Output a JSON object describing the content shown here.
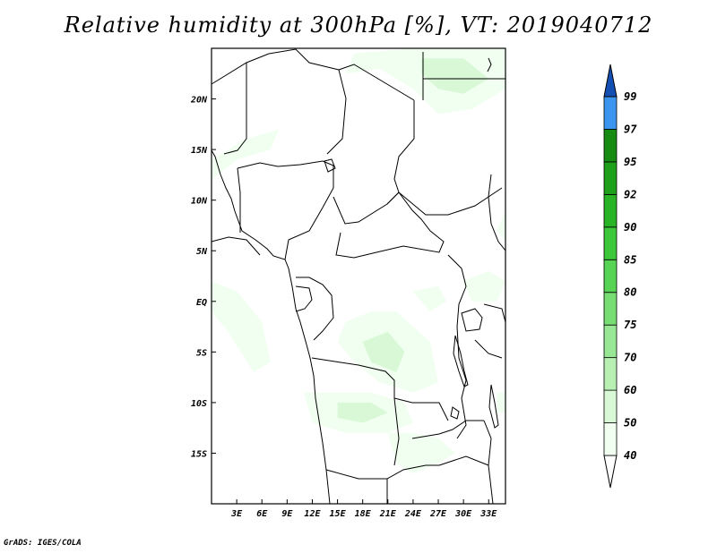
{
  "title": "Relative humidity at 300hPa [%], VT: 2019040712",
  "footer": "GrADS: IGES/COLA",
  "map": {
    "lon_range": [
      0,
      35
    ],
    "lat_range": [
      -20,
      25
    ],
    "lon_ticks": [
      {
        "value": 3,
        "label": "3E"
      },
      {
        "value": 6,
        "label": "6E"
      },
      {
        "value": 9,
        "label": "9E"
      },
      {
        "value": 12,
        "label": "12E"
      },
      {
        "value": 15,
        "label": "15E"
      },
      {
        "value": 18,
        "label": "18E"
      },
      {
        "value": 21,
        "label": "21E"
      },
      {
        "value": 24,
        "label": "24E"
      },
      {
        "value": 27,
        "label": "27E"
      },
      {
        "value": 30,
        "label": "30E"
      },
      {
        "value": 33,
        "label": "33E"
      }
    ],
    "lat_ticks": [
      {
        "value": 20,
        "label": "20N"
      },
      {
        "value": 15,
        "label": "15N"
      },
      {
        "value": 10,
        "label": "10N"
      },
      {
        "value": 5,
        "label": "5N"
      },
      {
        "value": 0,
        "label": "EQ"
      },
      {
        "value": -5,
        "label": "5S"
      },
      {
        "value": -10,
        "label": "10S"
      },
      {
        "value": -15,
        "label": "15S"
      }
    ],
    "humidity_regions": [
      {
        "level": "40-50",
        "points": [
          [
            17,
            24.5
          ],
          [
            24,
            25
          ],
          [
            35,
            25
          ],
          [
            35,
            21
          ],
          [
            31,
            19
          ],
          [
            27,
            18.5
          ],
          [
            24,
            21
          ],
          [
            20,
            23
          ],
          [
            16,
            22.5
          ]
        ]
      },
      {
        "level": "50-60",
        "points": [
          [
            25,
            24
          ],
          [
            30,
            24
          ],
          [
            33,
            22
          ],
          [
            30,
            20.5
          ],
          [
            27,
            21
          ],
          [
            25,
            22.5
          ]
        ]
      },
      {
        "level": "40-50",
        "points": [
          [
            0,
            14
          ],
          [
            4,
            16
          ],
          [
            8,
            17
          ],
          [
            7,
            15
          ],
          [
            3,
            14
          ],
          [
            0,
            12
          ]
        ]
      },
      {
        "level": "40-50",
        "points": [
          [
            0,
            2
          ],
          [
            3,
            1
          ],
          [
            6,
            -2
          ],
          [
            7,
            -6
          ],
          [
            5,
            -7
          ],
          [
            2,
            -3
          ],
          [
            0,
            -1
          ]
        ]
      },
      {
        "level": "40-50",
        "points": [
          [
            16,
            -2
          ],
          [
            19,
            -1
          ],
          [
            22,
            -1
          ],
          [
            26,
            -4
          ],
          [
            27,
            -8
          ],
          [
            24,
            -9
          ],
          [
            20,
            -8
          ],
          [
            17,
            -6
          ],
          [
            15,
            -4
          ]
        ]
      },
      {
        "level": "50-60",
        "points": [
          [
            18,
            -4
          ],
          [
            21,
            -3
          ],
          [
            23,
            -5
          ],
          [
            22,
            -7
          ],
          [
            19,
            -6
          ]
        ]
      },
      {
        "level": "40-50",
        "points": [
          [
            24,
            1
          ],
          [
            27,
            1.5
          ],
          [
            28,
            0
          ],
          [
            26,
            -1
          ]
        ]
      },
      {
        "level": "40-50",
        "points": [
          [
            30,
            2
          ],
          [
            33,
            3
          ],
          [
            35,
            2
          ],
          [
            34,
            0
          ],
          [
            31,
            0
          ]
        ]
      },
      {
        "level": "40-50",
        "points": [
          [
            11,
            -9
          ],
          [
            15,
            -9
          ],
          [
            19,
            -9
          ],
          [
            23,
            -10
          ],
          [
            24,
            -12
          ],
          [
            21,
            -13
          ],
          [
            16,
            -13
          ],
          [
            12,
            -12
          ]
        ]
      },
      {
        "level": "50-60",
        "points": [
          [
            15,
            -10
          ],
          [
            19,
            -10
          ],
          [
            21,
            -11
          ],
          [
            18,
            -12
          ],
          [
            15,
            -11.5
          ]
        ]
      },
      {
        "level": "40-50",
        "points": [
          [
            21,
            -13
          ],
          [
            24,
            -13
          ],
          [
            27,
            -13.5
          ],
          [
            29,
            -15
          ],
          [
            27,
            -16
          ],
          [
            24,
            -17
          ],
          [
            22,
            -16
          ]
        ]
      },
      {
        "level": "40-50",
        "points": [
          [
            34,
            -9
          ],
          [
            35,
            -9
          ],
          [
            35,
            -11
          ],
          [
            34,
            -11
          ]
        ]
      },
      {
        "level": "40-50",
        "points": [
          [
            35,
            9
          ],
          [
            35,
            6
          ],
          [
            34,
            7
          ]
        ]
      }
    ]
  },
  "colorbar": {
    "levels": [
      "40",
      "50",
      "60",
      "70",
      "75",
      "80",
      "85",
      "90",
      "92",
      "95",
      "97",
      "99"
    ],
    "colors": [
      "#f0fff0",
      "#d8f8d6",
      "#b8f0b4",
      "#98e794",
      "#78de74",
      "#58d454",
      "#3cc838",
      "#28b424",
      "#1ea01a",
      "#168c12",
      "#3c96f0",
      "#1e6ed8",
      "#1450b4"
    ],
    "extend_min_color": "#ffffff",
    "extend_max_color": "#1450b4"
  }
}
